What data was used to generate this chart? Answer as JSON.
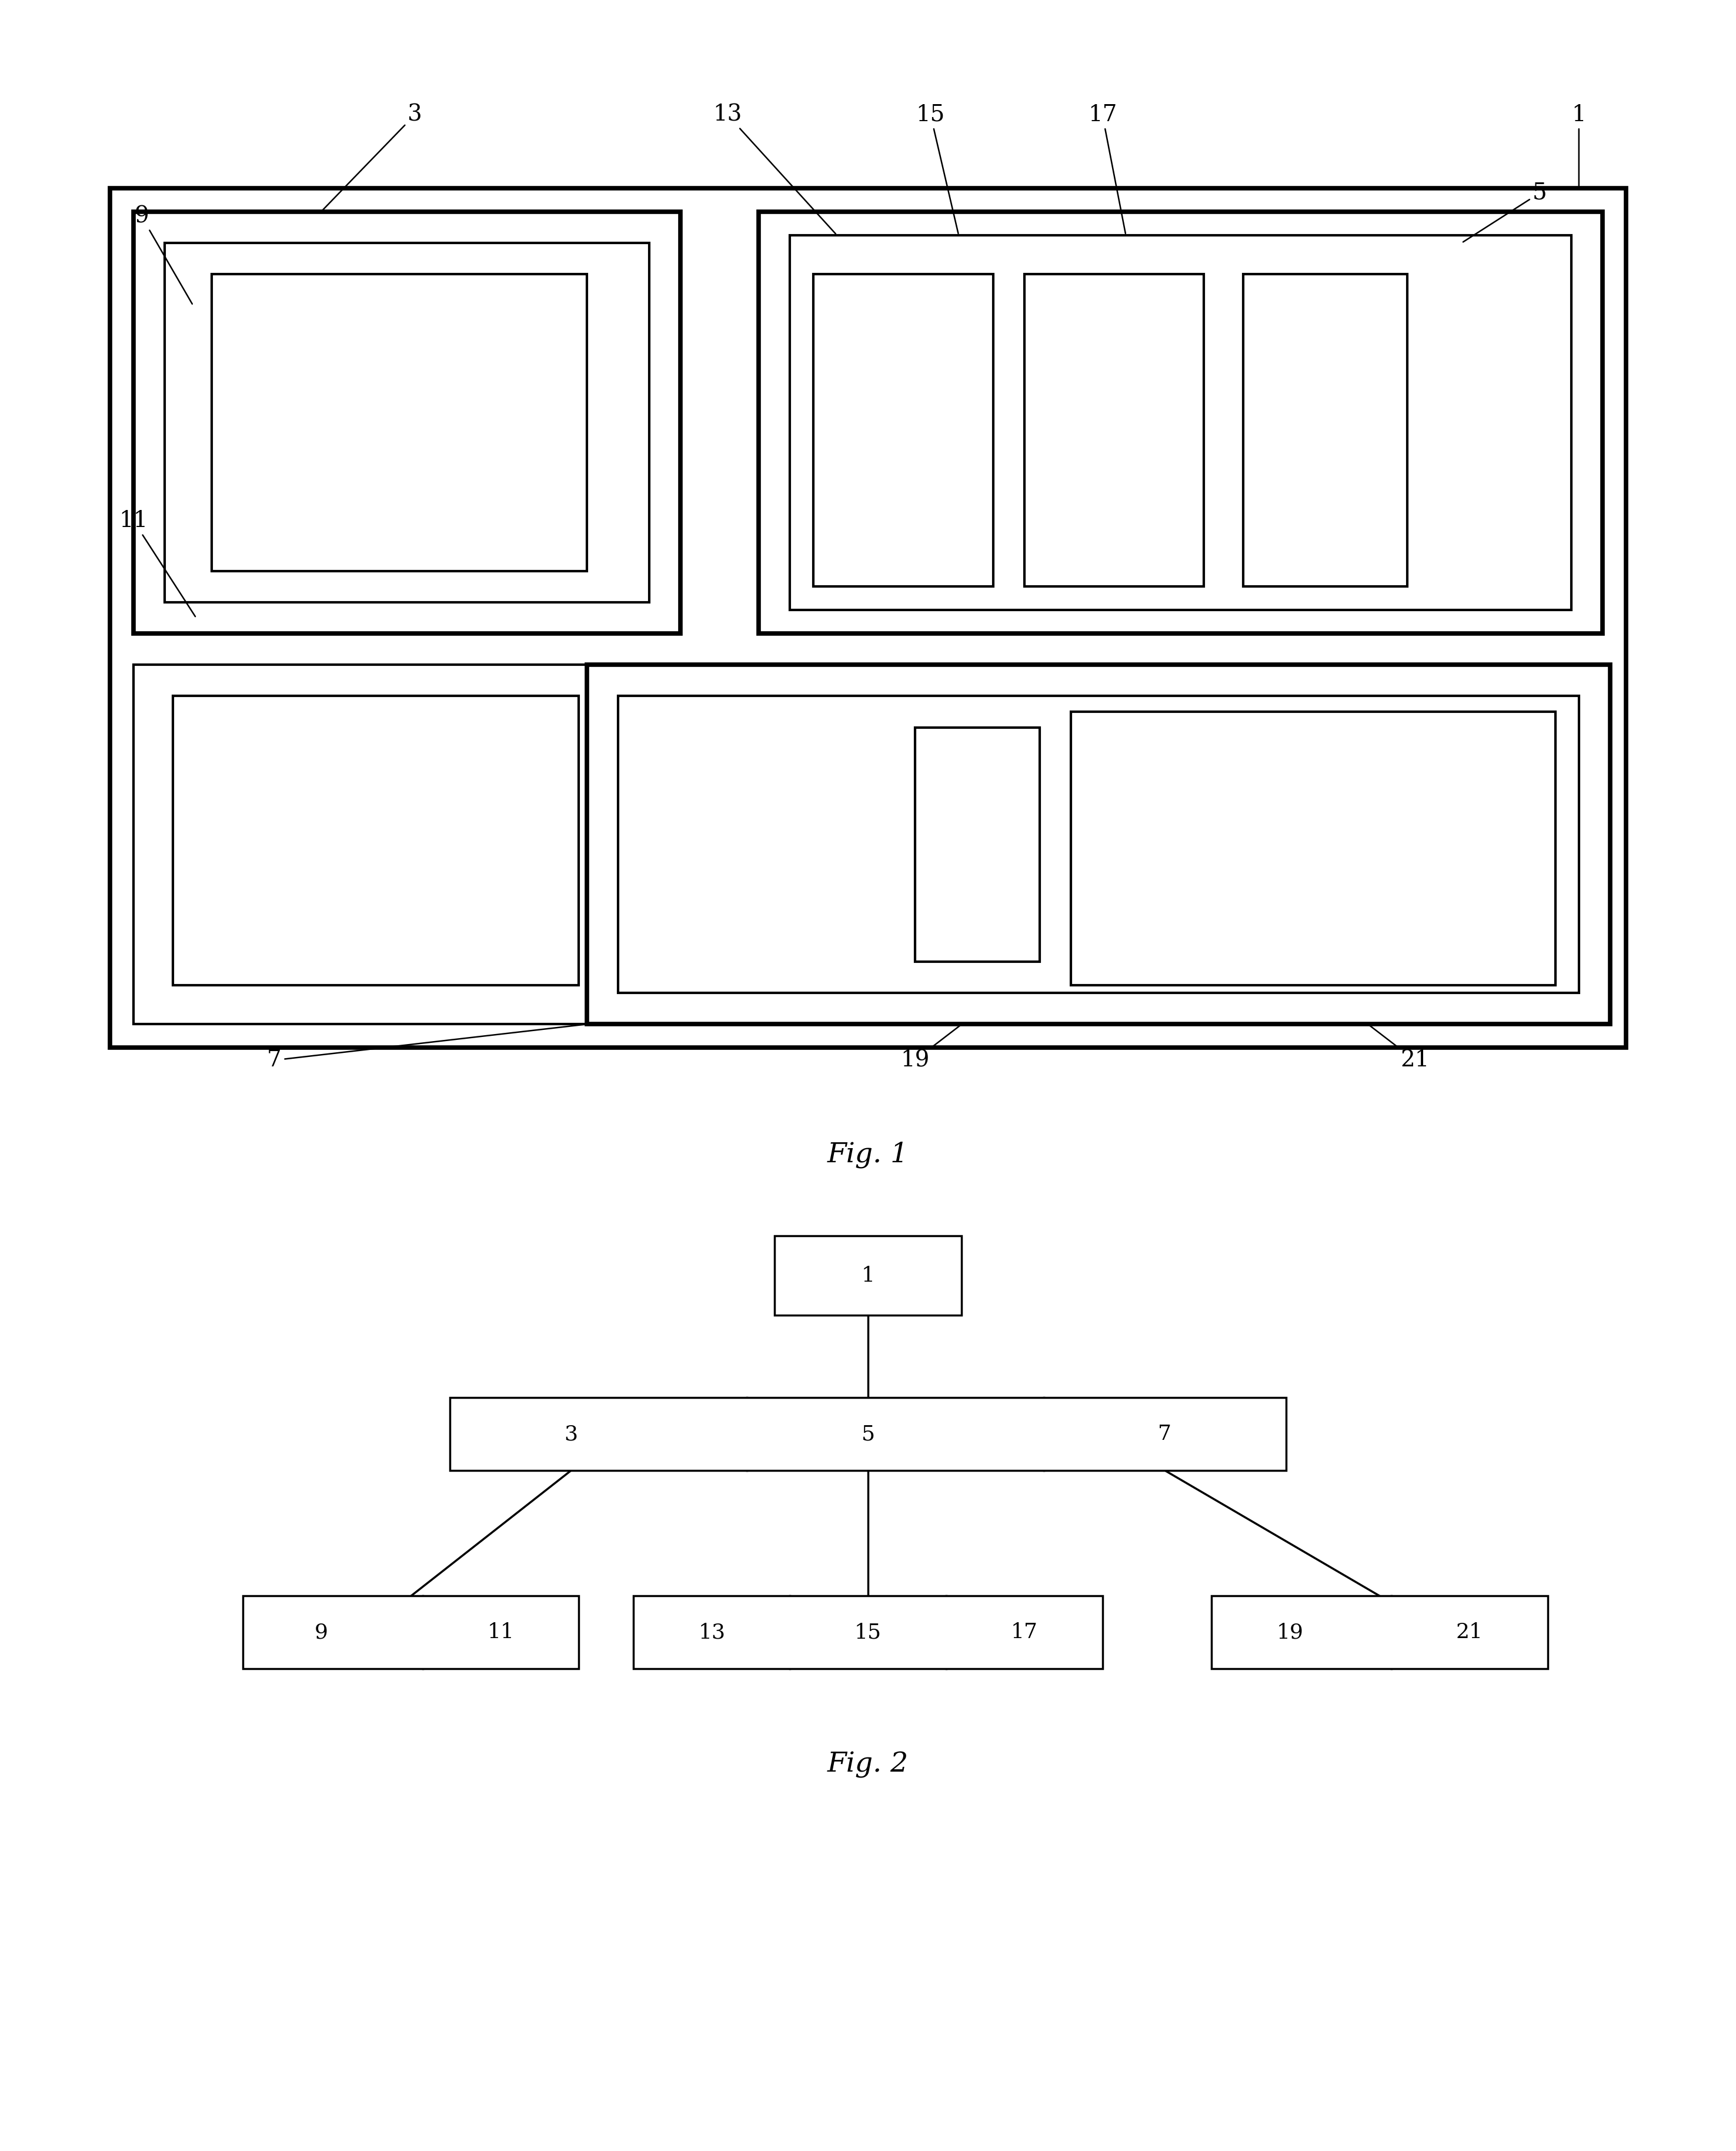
{
  "fig_width": 29.52,
  "fig_height": 36.57,
  "bg_color": "#ffffff",
  "line_color": "#000000",
  "lw_thin": 3.0,
  "lw_thick": 5.5,
  "fig1_title": "Fig. 1",
  "fig2_title": "Fig. 2"
}
